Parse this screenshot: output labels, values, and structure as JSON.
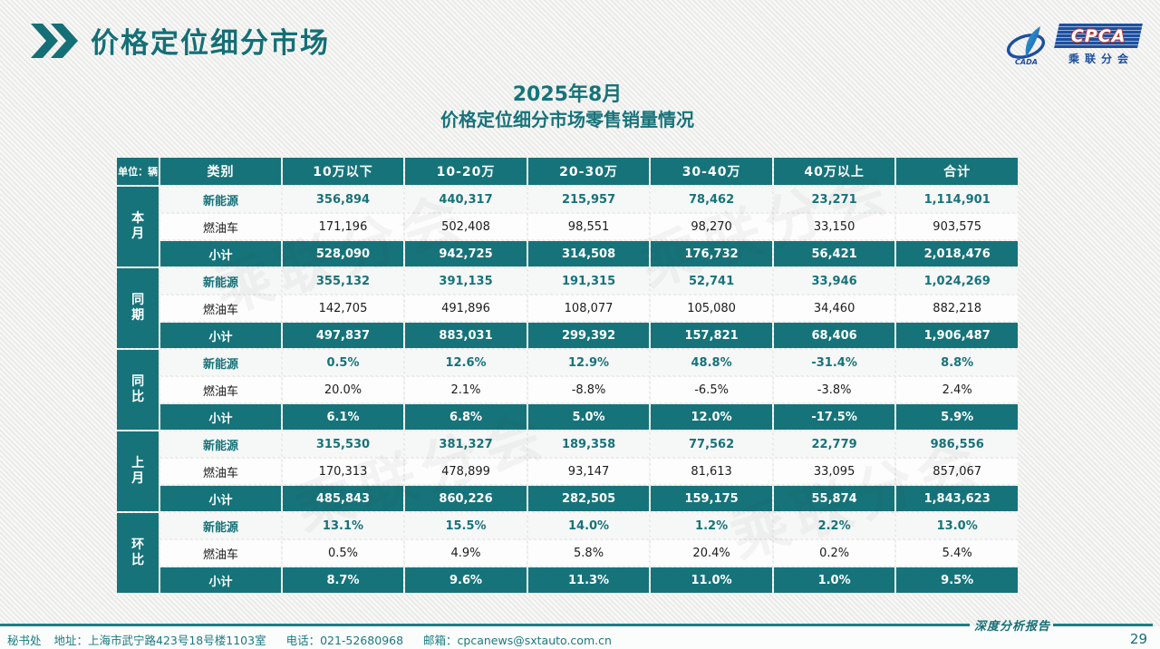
{
  "header": {
    "title": "价格定位细分市场"
  },
  "logo": {
    "emblem_text": "CADA",
    "name": "CPCA",
    "subtitle": "乘联分会"
  },
  "report_title": {
    "line1": "2025年8月",
    "line2": "价格定位细分市场零售销量情况"
  },
  "table": {
    "unit_label": "单位：辆",
    "columns": [
      "类别",
      "10万以下",
      "10-20万",
      "20-30万",
      "30-40万",
      "40万以上",
      "合计"
    ],
    "groups": [
      {
        "label": "本月",
        "rows": [
          {
            "category": "新能源",
            "type": "nev",
            "values": [
              "356,894",
              "440,317",
              "215,957",
              "78,462",
              "23,271",
              "1,114,901"
            ]
          },
          {
            "category": "燃油车",
            "type": "fuel",
            "values": [
              "171,196",
              "502,408",
              "98,551",
              "98,270",
              "33,150",
              "903,575"
            ]
          },
          {
            "category": "小计",
            "type": "subtotal",
            "values": [
              "528,090",
              "942,725",
              "314,508",
              "176,732",
              "56,421",
              "2,018,476"
            ]
          }
        ]
      },
      {
        "label": "同期",
        "rows": [
          {
            "category": "新能源",
            "type": "nev",
            "values": [
              "355,132",
              "391,135",
              "191,315",
              "52,741",
              "33,946",
              "1,024,269"
            ]
          },
          {
            "category": "燃油车",
            "type": "fuel",
            "values": [
              "142,705",
              "491,896",
              "108,077",
              "105,080",
              "34,460",
              "882,218"
            ]
          },
          {
            "category": "小计",
            "type": "subtotal",
            "values": [
              "497,837",
              "883,031",
              "299,392",
              "157,821",
              "68,406",
              "1,906,487"
            ]
          }
        ]
      },
      {
        "label": "同比",
        "rows": [
          {
            "category": "新能源",
            "type": "nev",
            "values": [
              "0.5%",
              "12.6%",
              "12.9%",
              "48.8%",
              "-31.4%",
              "8.8%"
            ]
          },
          {
            "category": "燃油车",
            "type": "fuel",
            "values": [
              "20.0%",
              "2.1%",
              "-8.8%",
              "-6.5%",
              "-3.8%",
              "2.4%"
            ]
          },
          {
            "category": "小计",
            "type": "subtotal",
            "values": [
              "6.1%",
              "6.8%",
              "5.0%",
              "12.0%",
              "-17.5%",
              "5.9%"
            ]
          }
        ]
      },
      {
        "label": "上月",
        "rows": [
          {
            "category": "新能源",
            "type": "nev",
            "values": [
              "315,530",
              "381,327",
              "189,358",
              "77,562",
              "22,779",
              "986,556"
            ]
          },
          {
            "category": "燃油车",
            "type": "fuel",
            "values": [
              "170,313",
              "478,899",
              "93,147",
              "81,613",
              "33,095",
              "857,067"
            ]
          },
          {
            "category": "小计",
            "type": "subtotal",
            "values": [
              "485,843",
              "860,226",
              "282,505",
              "159,175",
              "55,874",
              "1,843,623"
            ]
          }
        ]
      },
      {
        "label": "环比",
        "rows": [
          {
            "category": "新能源",
            "type": "nev",
            "values": [
              "13.1%",
              "15.5%",
              "14.0%",
              "1.2%",
              "2.2%",
              "13.0%"
            ]
          },
          {
            "category": "燃油车",
            "type": "fuel",
            "values": [
              "0.5%",
              "4.9%",
              "5.8%",
              "20.4%",
              "0.2%",
              "5.4%"
            ]
          },
          {
            "category": "小计",
            "type": "subtotal",
            "values": [
              "8.7%",
              "9.6%",
              "11.3%",
              "11.0%",
              "1.0%",
              "9.5%"
            ]
          }
        ]
      }
    ]
  },
  "footer": {
    "secretariat": "秘书处",
    "address": "地址：上海市武宁路423号18号楼1103室",
    "phone": "电话：021-52680968",
    "email": "邮箱：cpcanews@sxtauto.com.cn",
    "report_label": "深度分析报告",
    "page_number": "29"
  },
  "watermark": "乘联分会",
  "colors": {
    "teal": "#17737A",
    "logo_blue": "#1D4F9E",
    "logo_red": "#D03A2D"
  }
}
